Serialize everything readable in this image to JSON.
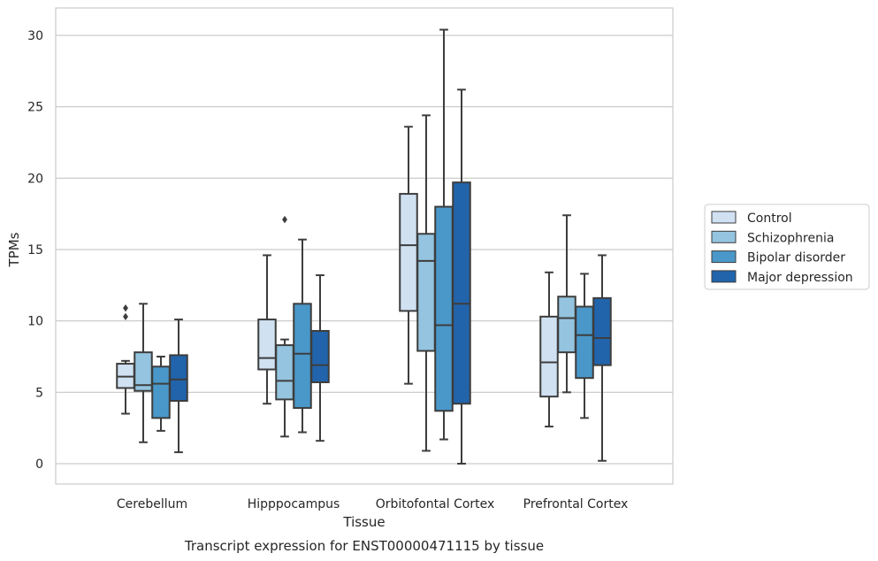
{
  "chart_data": {
    "type": "box",
    "title": "",
    "caption": "Transcript expression for ENST00000471115 by tissue",
    "xlabel": "Tissue",
    "ylabel": "TPMs",
    "ylim": [
      -1.5,
      32
    ],
    "yticks": [
      0,
      5,
      10,
      15,
      20,
      25,
      30
    ],
    "grid": "horizontal",
    "legend_position": "right",
    "categories": [
      "Cerebellum",
      "Hipppocampus",
      "Orbitofontal Cortex",
      "Prefrontal Cortex"
    ],
    "series": [
      {
        "name": "Control",
        "color": "#d0e1f2",
        "boxes": [
          {
            "whislo": 3.5,
            "q1": 5.3,
            "med": 6.1,
            "q3": 7.0,
            "whishi": 7.2,
            "fliers": [
              10.3,
              10.9
            ]
          },
          {
            "whislo": 4.2,
            "q1": 6.6,
            "med": 7.4,
            "q3": 10.1,
            "whishi": 14.6,
            "fliers": []
          },
          {
            "whislo": 5.6,
            "q1": 10.7,
            "med": 15.3,
            "q3": 18.9,
            "whishi": 23.6,
            "fliers": []
          },
          {
            "whislo": 2.6,
            "q1": 4.7,
            "med": 7.1,
            "q3": 10.3,
            "whishi": 13.4,
            "fliers": []
          }
        ]
      },
      {
        "name": "Schizophrenia",
        "color": "#94c4df",
        "boxes": [
          {
            "whislo": 1.5,
            "q1": 5.1,
            "med": 5.5,
            "q3": 7.8,
            "whishi": 11.2,
            "fliers": []
          },
          {
            "whislo": 1.9,
            "q1": 4.5,
            "med": 5.8,
            "q3": 8.3,
            "whishi": 8.7,
            "fliers": [
              17.1
            ]
          },
          {
            "whislo": 0.9,
            "q1": 7.9,
            "med": 14.2,
            "q3": 16.1,
            "whishi": 24.4,
            "fliers": []
          },
          {
            "whislo": 5.0,
            "q1": 7.8,
            "med": 10.2,
            "q3": 11.7,
            "whishi": 17.4,
            "fliers": []
          }
        ]
      },
      {
        "name": "Bipolar disorder",
        "color": "#4a98c9",
        "boxes": [
          {
            "whislo": 2.3,
            "q1": 3.2,
            "med": 5.6,
            "q3": 6.8,
            "whishi": 7.5,
            "fliers": []
          },
          {
            "whislo": 2.2,
            "q1": 3.9,
            "med": 7.7,
            "q3": 11.2,
            "whishi": 15.7,
            "fliers": []
          },
          {
            "whislo": 1.7,
            "q1": 3.7,
            "med": 9.7,
            "q3": 18.0,
            "whishi": 30.4,
            "fliers": []
          },
          {
            "whislo": 3.2,
            "q1": 6.0,
            "med": 9.0,
            "q3": 11.0,
            "whishi": 13.3,
            "fliers": []
          }
        ]
      },
      {
        "name": "Major depression",
        "color": "#2164ab",
        "boxes": [
          {
            "whislo": 0.8,
            "q1": 4.4,
            "med": 5.9,
            "q3": 7.6,
            "whishi": 10.1,
            "fliers": []
          },
          {
            "whislo": 1.6,
            "q1": 5.7,
            "med": 6.9,
            "q3": 9.3,
            "whishi": 13.2,
            "fliers": []
          },
          {
            "whislo": 0.0,
            "q1": 4.2,
            "med": 11.2,
            "q3": 19.7,
            "whishi": 26.2,
            "fliers": []
          },
          {
            "whislo": 0.2,
            "q1": 6.9,
            "med": 8.8,
            "q3": 11.6,
            "whishi": 14.6,
            "fliers": []
          }
        ]
      }
    ]
  }
}
